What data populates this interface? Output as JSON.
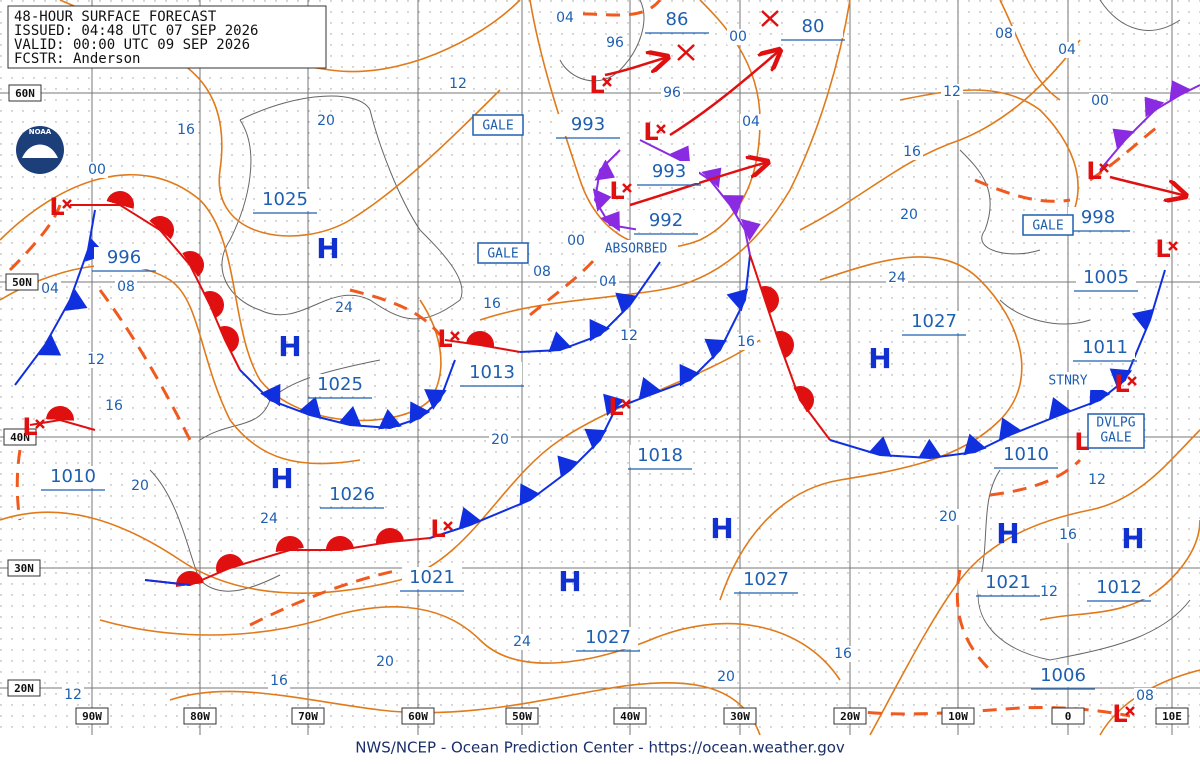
{
  "header": {
    "lines": [
      "48-HOUR SURFACE FORECAST",
      "ISSUED: 04:48 UTC 07 SEP 2026",
      "VALID: 00:00 UTC 09 SEP 2026",
      "FCSTR: Anderson"
    ]
  },
  "logo": "NOAA",
  "lat_labels": [
    "60N",
    "50N",
    "40N",
    "30N",
    "20N"
  ],
  "lon_labels": [
    "90W",
    "80W",
    "70W",
    "60W",
    "50W",
    "40W",
    "30W",
    "20W",
    "10W",
    "0",
    "10E"
  ],
  "highs": [
    "H",
    "H",
    "H",
    "H",
    "H",
    "H",
    "H",
    "H"
  ],
  "lows": [
    "L",
    "L",
    "L",
    "L",
    "L",
    "L",
    "L",
    "L",
    "L",
    "L",
    "L",
    "L",
    "L"
  ],
  "pressures": [
    "1025",
    "996",
    "1025",
    "1026",
    "1010",
    "1013",
    "993",
    "993",
    "992",
    "1018",
    "1021",
    "1027",
    "1027",
    "1027",
    "1005",
    "998",
    "1011",
    "1010",
    "1021",
    "1012",
    "1006",
    "86",
    "80"
  ],
  "gale_boxes": [
    "GALE",
    "GALE",
    "GALE"
  ],
  "dvlpg_gale": [
    "DVLPG",
    "GALE"
  ],
  "notes": [
    "ABSORBED",
    "STNRY"
  ],
  "isobar_labels": [
    "04",
    "96",
    "00",
    "08",
    "04",
    "12",
    "96",
    "12",
    "00",
    "20",
    "16",
    "04",
    "16",
    "00",
    "20",
    "00",
    "04",
    "08",
    "08",
    "04",
    "24",
    "16",
    "24",
    "12",
    "16",
    "12",
    "16",
    "20",
    "20",
    "12",
    "24",
    "20",
    "16",
    "12",
    "24",
    "20",
    "16",
    "16",
    "20",
    "12",
    "08"
  ],
  "footer": "NWS/NCEP - Ocean Prediction Center - https://ocean.weather.gov"
}
